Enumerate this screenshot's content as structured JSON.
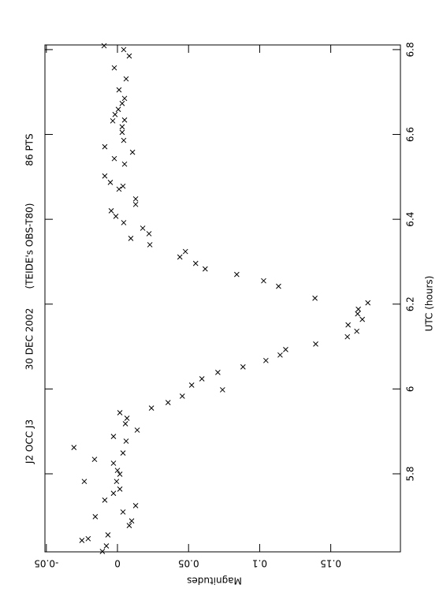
{
  "chart_data": {
    "type": "scatter",
    "title_parts": [
      "J2 OCC J3",
      "30 DEC 2002",
      "(TEIDE's OBS-T80)",
      "86 PTS"
    ],
    "x_label": "UTC (hours)",
    "y_label": "Magnitudes",
    "xlim": [
      5.616,
      6.811
    ],
    "xticks": [
      5.8,
      6,
      6.2,
      6.4,
      6.6,
      6.8
    ],
    "ylim": [
      -0.051,
      0.199
    ],
    "yticks": [
      -0.05,
      0,
      0.05,
      0.1,
      0.15
    ],
    "x": [
      6.809,
      6.8,
      6.785,
      6.757,
      6.705,
      6.731,
      6.673,
      6.685,
      6.659,
      6.647,
      6.634,
      6.632,
      6.618,
      6.605,
      6.586,
      6.558,
      6.571,
      6.543,
      6.53,
      6.502,
      6.487,
      6.471,
      6.478,
      6.448,
      6.435,
      6.42,
      6.407,
      6.392,
      6.379,
      6.366,
      6.34,
      6.355,
      6.311,
      6.324,
      6.296,
      6.283,
      6.27,
      6.255,
      6.242,
      6.214,
      6.151,
      6.188,
      6.177,
      6.164,
      6.203,
      6.136,
      6.123,
      6.106,
      6.093,
      6.08,
      6.067,
      6.052,
      6.039,
      6.024,
      6.009,
      5.998,
      5.983,
      5.968,
      5.955,
      5.903,
      5.944,
      5.931,
      5.918,
      5.877,
      5.888,
      5.862,
      5.834,
      5.849,
      5.825,
      5.808,
      5.799,
      5.782,
      5.782,
      5.738,
      5.754,
      5.764,
      5.725,
      5.71,
      5.699,
      5.689,
      5.678,
      5.647,
      5.656,
      5.643,
      5.63,
      5.617
    ],
    "series": [
      {
        "color": "#000000",
        "values": [
          -0.0094,
          0.0044,
          0.0083,
          -0.0022,
          0.0011,
          0.0061,
          0.0033,
          0.005,
          0.0006,
          -0.0017,
          0.005,
          -0.0033,
          0.0033,
          0.0033,
          0.0044,
          0.0106,
          -0.0089,
          -0.0022,
          0.005,
          -0.0089,
          -0.005,
          0.0011,
          0.0039,
          0.0128,
          0.0128,
          -0.0044,
          -0.0011,
          0.0044,
          0.0178,
          0.0222,
          0.0228,
          0.0094,
          0.0439,
          0.0478,
          0.055,
          0.0617,
          0.0839,
          0.1028,
          0.1133,
          0.1389,
          0.1622,
          0.1694,
          0.1689,
          0.1722,
          0.1761,
          0.1683,
          0.1617,
          0.1394,
          0.1183,
          0.1144,
          0.1044,
          0.0883,
          0.0706,
          0.0594,
          0.0522,
          0.0739,
          0.0456,
          0.0356,
          0.0239,
          0.0139,
          0.0017,
          0.0067,
          0.0056,
          0.0061,
          -0.0028,
          -0.0306,
          -0.0161,
          0.0039,
          -0.0028,
          0,
          0.0017,
          -0.0233,
          -0.0006,
          -0.0089,
          -0.0028,
          0.0017,
          0.0128,
          0.0039,
          -0.0156,
          0.01,
          0.0083,
          -0.0206,
          -0.0067,
          -0.025,
          -0.0078,
          -0.0106
        ]
      }
    ]
  }
}
